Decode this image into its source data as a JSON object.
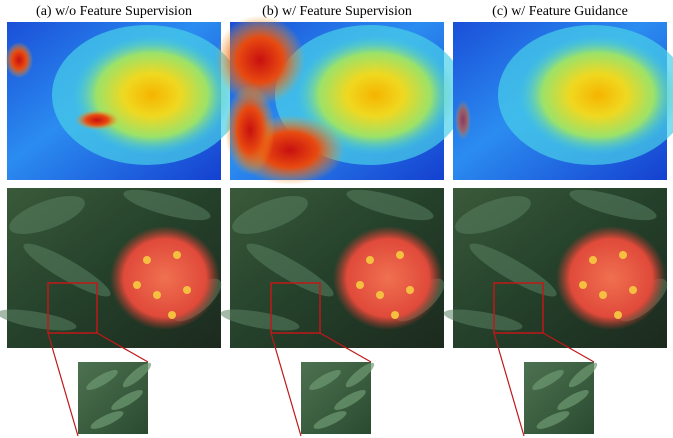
{
  "panels": [
    {
      "caption": "(a) w/o Feature Supervision"
    },
    {
      "caption": "(b) w/ Feature Supervision"
    },
    {
      "caption": "(c) w/ Feature Guidance"
    }
  ]
}
